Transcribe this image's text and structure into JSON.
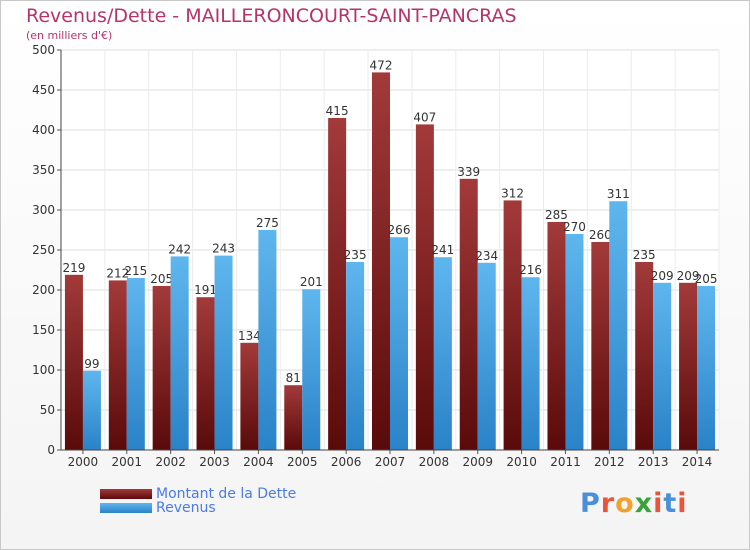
{
  "chart_data": {
    "type": "bar",
    "title": "Revenus/Dette - MAILLERONCOURT-SAINT-PANCRAS",
    "subtitle": "(en milliers d'€)",
    "categories": [
      "2000",
      "2001",
      "2002",
      "2003",
      "2004",
      "2005",
      "2006",
      "2007",
      "2008",
      "2009",
      "2010",
      "2011",
      "2012",
      "2013",
      "2014"
    ],
    "series": [
      {
        "name": "Montant de la Dette",
        "color": "#8b1c1c",
        "values": [
          219,
          212,
          205,
          191,
          134,
          81,
          415,
          472,
          407,
          339,
          312,
          285,
          260,
          235,
          209
        ]
      },
      {
        "name": "Revenus",
        "color": "#3a9ee0",
        "values": [
          99,
          215,
          242,
          243,
          275,
          201,
          235,
          266,
          241,
          234,
          216,
          270,
          311,
          209,
          205
        ]
      }
    ],
    "ylim": [
      0,
      500
    ],
    "yticks": [
      0,
      50,
      100,
      150,
      200,
      250,
      300,
      350,
      400,
      450,
      500
    ],
    "grid": true,
    "legend_position": "bottom-left"
  },
  "logo": {
    "text": "Proxiti",
    "colors": [
      "#4a90d9",
      "#e8553c",
      "#f2a22c",
      "#3aa23a",
      "#e8553c",
      "#4a90d9",
      "#e8553c"
    ]
  }
}
